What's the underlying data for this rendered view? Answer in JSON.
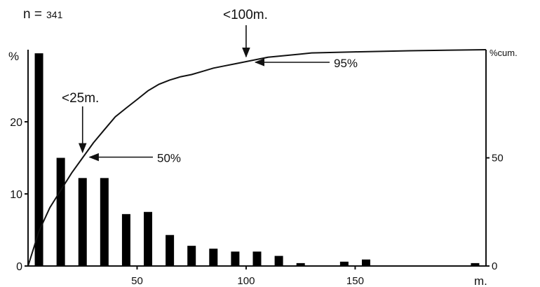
{
  "chart_data": {
    "type": "bar",
    "sample_size_label": "n =",
    "sample_size_value": "341",
    "left_axis_unit": "%",
    "right_axis_unit": "%cum.",
    "x_unit": "m.",
    "x_ticks": [
      "50",
      "100",
      "150"
    ],
    "y_left_ticks": [
      "0",
      "10",
      "20"
    ],
    "y_right_ticks": [
      "0",
      "50"
    ],
    "xlim": [
      0,
      210
    ],
    "ylim_left": [
      0,
      30
    ],
    "ylim_right": [
      0,
      100
    ],
    "bar_color": "#000000",
    "line_color": "#111111",
    "series": [
      {
        "kind": "bar",
        "x": [
          5,
          15,
          25,
          35,
          45,
          55,
          65,
          75,
          85,
          95,
          105,
          115,
          125,
          145,
          155,
          205
        ],
        "values": [
          29.5,
          15.0,
          12.2,
          12.2,
          7.2,
          7.5,
          4.3,
          2.8,
          2.4,
          2.0,
          2.0,
          1.4,
          0.4,
          0.6,
          0.9,
          0.4
        ]
      },
      {
        "kind": "line",
        "x": [
          0,
          5,
          10,
          15,
          20,
          25,
          30,
          35,
          40,
          45,
          50,
          55,
          60,
          65,
          70,
          75,
          80,
          85,
          90,
          95,
          100,
          105,
          110,
          115,
          120,
          125,
          130,
          150,
          175,
          210
        ],
        "values": [
          0,
          16,
          27,
          35,
          43,
          50,
          57,
          63,
          69,
          73,
          77,
          81,
          84,
          86,
          87.5,
          88.5,
          90,
          91.5,
          92.5,
          93.5,
          94.5,
          95.5,
          96.5,
          97,
          97.5,
          98,
          98.5,
          99,
          99.5,
          100
        ]
      }
    ],
    "annotations": [
      {
        "id": "lt25",
        "text": "<25m.",
        "x": 25,
        "cum": 50
      },
      {
        "id": "p50",
        "text": "50%",
        "x": 27,
        "cum": 50
      },
      {
        "id": "lt100",
        "text": "<100m.",
        "x": 100,
        "cum": 94.5
      },
      {
        "id": "p95",
        "text": "95%",
        "x": 103,
        "cum": 94.5
      }
    ]
  }
}
